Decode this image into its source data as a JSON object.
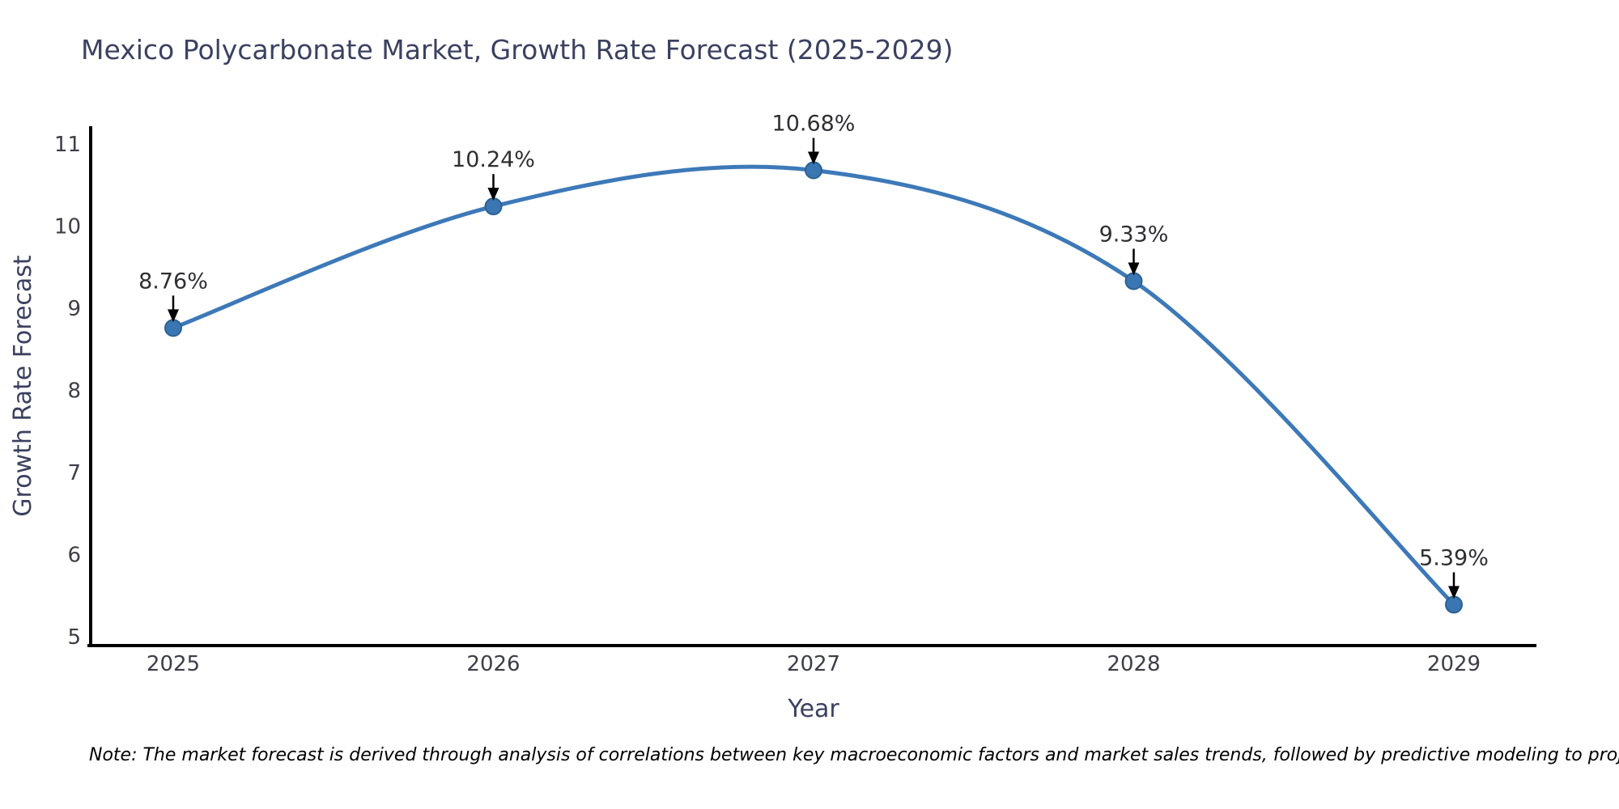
{
  "title": "Mexico Polycarbonate Market, Growth Rate Forecast (2025-2029)",
  "note": "Note: The market forecast is derived through analysis of correlations between key macroeconomic factors and market sales trends, followed by predictive modeling to project future sales",
  "chart_data": {
    "type": "line",
    "line_shape": "spline",
    "title": "Mexico Polycarbonate Market, Growth Rate Forecast (2025-2029)",
    "xlabel": "Year",
    "ylabel": "Growth Rate Forecast",
    "x": [
      2025,
      2026,
      2027,
      2028,
      2029
    ],
    "x_tick_labels": [
      "2025",
      "2026",
      "2027",
      "2028",
      "2029"
    ],
    "values": [
      8.76,
      10.24,
      10.68,
      9.33,
      5.39
    ],
    "point_labels": [
      "8.76%",
      "10.24%",
      "10.68%",
      "9.33%",
      "5.39%"
    ],
    "yticks": [
      5,
      6,
      7,
      8,
      9,
      10,
      11
    ],
    "ytick_labels": [
      "5",
      "6",
      "7",
      "8",
      "9",
      "10",
      "11"
    ],
    "xlim": [
      2024.74,
      2029.26
    ],
    "ylim": [
      4.93,
      11.21
    ],
    "grid": false,
    "legend": "none",
    "annotation_arrows": "down-to-point",
    "colors": {
      "line": "#3d79b8",
      "marker_fill": "#3a76b2",
      "marker_edge": "#2c628f",
      "axis_line": "#000000",
      "title_text": "#3b4160",
      "axis_title_text": "#3b4160",
      "tick_text": "#3d3f48",
      "annotation_text": "#2e2f33",
      "arrow": "#000000",
      "background": "#ffffff"
    }
  }
}
